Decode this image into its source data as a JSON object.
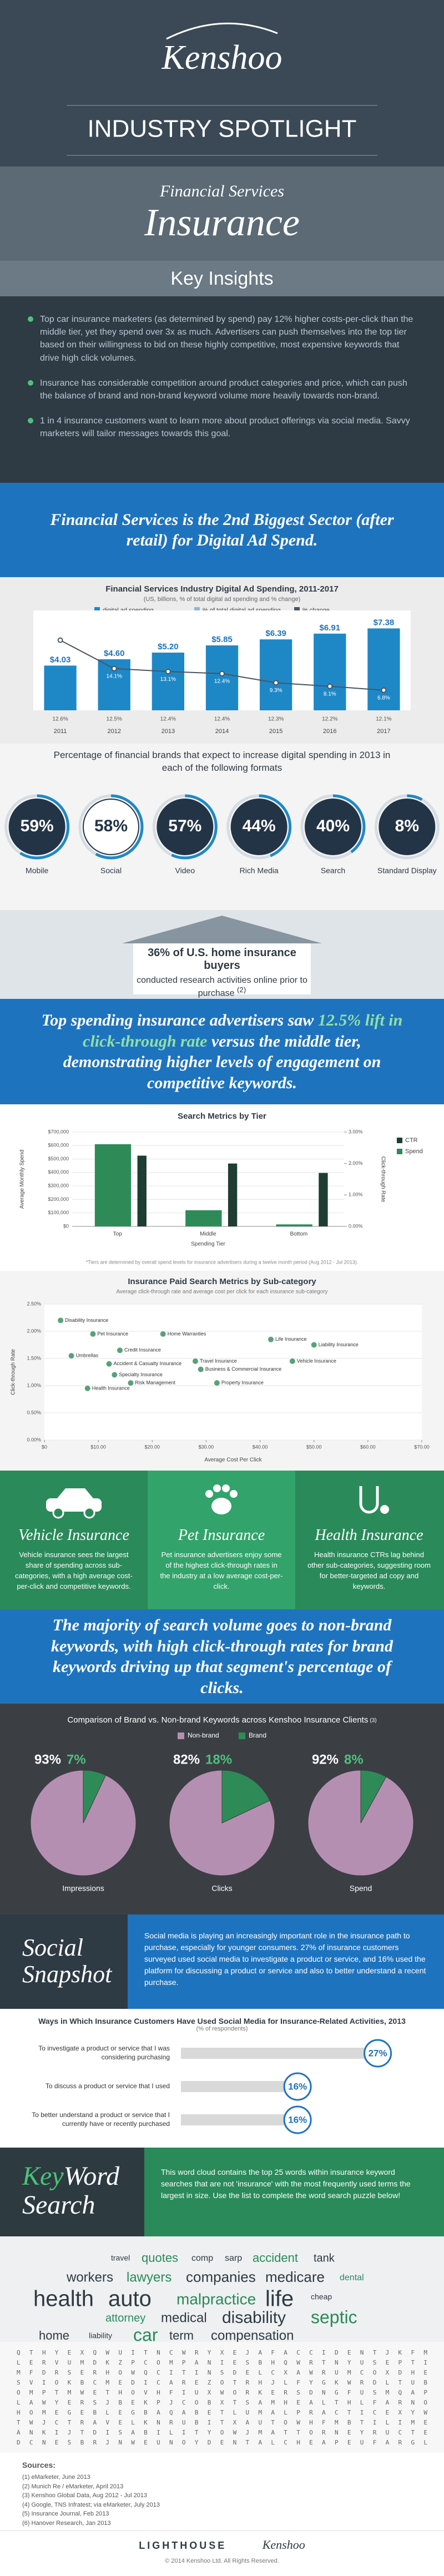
{
  "header": {
    "logo": "Kenshoo",
    "title": "INDUSTRY SPOTLIGHT"
  },
  "hero": {
    "kicker": "Financial Services",
    "title": "Insurance"
  },
  "insights": {
    "heading": "Key Insights",
    "bullets": [
      "Top car insurance marketers (as determined by spend) pay 12% higher costs-per-click than the middle tier, yet they spend over 3x as much. Advertisers can push themselves into the top tier based on their willingness to bid on these highly competitive, most expensive keywords that drive high click volumes.",
      "Insurance has considerable competition around product categories and price, which can push the balance of brand and non-brand keyword volume more heavily towards non-brand.",
      "1 in 4 insurance customers want to learn more about product offerings via social media. Savvy marketers will tailor messages towards this goal."
    ]
  },
  "band1": "Financial Services is the 2nd Biggest Sector (after retail) for Digital Ad Spend.",
  "home_buyers": {
    "stat": "36% of U.S. home insurance buyers",
    "text": "conducted research activities online prior to purchase",
    "note": "(2)"
  },
  "band2": {
    "before": "Top spending insurance advertisers saw ",
    "highlight": "12.5% lift in click-through rate",
    "after": " versus the middle tier, demonstrating higher levels of engagement on competitive keywords."
  },
  "panels": [
    {
      "title": "Vehicle Insurance",
      "text": "Vehicle insurance sees the largest share of spending across sub-categories, with a high average cost-per-click and competitive keywords."
    },
    {
      "title": "Pet Insurance",
      "text": "Pet insurance advertisers enjoy some of the highest click-through rates in the industry at a low average cost-per-click."
    },
    {
      "title": "Health Insurance",
      "text": "Health insurance CTRs lag behind other sub-categories, suggesting room for better-targeted ad copy and keywords."
    }
  ],
  "band3": "The majority of search volume goes to non-brand keywords, with high click-through rates for brand keywords driving up that segment's percentage of clicks.",
  "social": {
    "title": "Social Snapshot",
    "text": "Social media is playing an increasingly important role in the insurance path to purchase, especially for younger consumers. 27% of insurance customers surveyed used social media to investigate a product or service, and 16% used the platform for discussing a product or service and also to better understand a recent purchase."
  },
  "keyword": {
    "key": "Key",
    "word": "Word",
    "search": "Search",
    "text": "This word cloud contains the top 25 words within insurance keyword searches that are not 'insurance' with the most frequently used terms the largest in size. Use the list to complete the word search puzzle below!"
  },
  "word_cloud": [
    "travel",
    "quotes",
    "comp",
    "sarp",
    "accident",
    "tank",
    "workers",
    "lawyers",
    "companies",
    "medicare",
    "dental",
    "health",
    "auto",
    "malpractice",
    "life",
    "cheap",
    "attorney",
    "medical",
    "disability",
    "septic",
    "home",
    "liability",
    "car",
    "term",
    "compensation"
  ],
  "letter_grid": [
    "Q T H Y E X Q W U I T N C W R Y X E J A F A C C I D E N T J K F M",
    "L E R V U M D K Z P C O M P A N I E S B H Q W R T N Y U S E P T I",
    "M F D R S E R H O W Q C I T I N S D E L C X A W R U M C O X D H E",
    "S V I O K B C M E D I C A R E Z O T R H J L F Y G K W R D L T U B",
    "O M P T M W E T H O V H F I U X W O R K E R S D N G F U S M Q A P",
    "L A W Y E R S J B E K P J C O B X T S A M H E A L T H L F A R N O",
    "H O M E G E B L E G B A Q A B E T L U M A L P R A C T I C E X Y W",
    "T W J C T R A V E L K N R U B I T X A U T O W H F M B T I L I M E",
    "A N K I J T D I S A B I L I T Y O W J M A T T O R N E Y R U C T E",
    "D C N E S B R J N W E U N O Y D E N T A L C H E A P E U F A R G L"
  ],
  "sources": {
    "heading": "Sources:",
    "items": [
      "(1) eMarketer, June 2013",
      "(2) Munich Re / eMarketer, April 2013",
      "(3) Kenshoo Global Data, Aug 2012 - Jul 2013",
      "(4) Google, TNS Infratest; via eMarketer, July 2013",
      "(5) Insurance Journal, Feb 2013",
      "(6) Hanover Research, Jan 2013"
    ]
  },
  "footer": {
    "logos": [
      "LIGHTHOUSE",
      "Kenshoo"
    ],
    "copyright": "© 2014 Kenshoo Ltd. All Rights Reserved."
  },
  "chart_data": [
    {
      "type": "bar",
      "title": "Financial Services Industry Digital Ad Spending, 2011-2017",
      "subtitle": "(US, billions, % of total digital ad spending and % change)",
      "categories": [
        "2011",
        "2012",
        "2013",
        "2014",
        "2015",
        "2016",
        "2017"
      ],
      "ylim": [
        0,
        8
      ],
      "y2lim": [
        0,
        30
      ],
      "series": [
        {
          "name": "digital ad spending",
          "color": "#1e88c7",
          "values": [
            4.03,
            4.6,
            5.2,
            5.85,
            6.39,
            6.91,
            7.38
          ],
          "value_labels": [
            "$4.03",
            "$4.60",
            "$5.20",
            "$5.85",
            "$6.39",
            "$6.91",
            "$7.38"
          ]
        },
        {
          "name": "% of total digital ad spending",
          "color": "#8fb8d8",
          "values": [
            12.6,
            12.5,
            12.4,
            12.4,
            12.3,
            12.2,
            12.1
          ],
          "value_labels": [
            "12.6%",
            "12.5%",
            "12.4%",
            "12.4%",
            "12.3%",
            "12.2%",
            "12.1%"
          ]
        },
        {
          "name": "% change",
          "color": "#4a5560",
          "axis": "y2",
          "values": [
            23.7,
            14.1,
            13.1,
            12.4,
            9.3,
            8.1,
            6.8
          ],
          "value_labels": [
            "23.7%",
            "14.1%",
            "13.1%",
            "12.4%",
            "9.3%",
            "8.1%",
            "6.8%"
          ]
        }
      ]
    },
    {
      "type": "ring",
      "title": "Percentage of financial brands that expect to increase digital spending in 2013 in each of the following formats",
      "categories": [
        "Mobile",
        "Social",
        "Video",
        "Rich Media",
        "Search",
        "Standard Display"
      ],
      "values": [
        59,
        58,
        57,
        44,
        40,
        8
      ],
      "value_labels": [
        "59%",
        "58%",
        "57%",
        "44%",
        "40%",
        "8%"
      ],
      "ylim": [
        0,
        100
      ],
      "color": "#1e88c7"
    },
    {
      "type": "bar",
      "title": "Search Metrics by Tier",
      "categories": [
        "Top",
        "Middle",
        "Bottom"
      ],
      "x_label": "Spending Tier",
      "y_label": "Average Monthly Spend",
      "y2_label": "Click-through Rate",
      "ylim": [
        0,
        700000
      ],
      "yticks": [
        {
          "value": 0,
          "label": "$0"
        },
        {
          "value": 100000,
          "label": "$100,000"
        },
        {
          "value": 200000,
          "label": "$200,000"
        },
        {
          "value": 300000,
          "label": "$300,000"
        },
        {
          "value": 400000,
          "label": "$400,000"
        },
        {
          "value": 500000,
          "label": "$500,000"
        },
        {
          "value": 600000,
          "label": "$600,000"
        },
        {
          "value": 700000,
          "label": "$700,000"
        }
      ],
      "y2lim": [
        0,
        3
      ],
      "y2ticks": [
        {
          "value": 0,
          "label": "0.00%"
        },
        {
          "value": 1,
          "label": "1.00%"
        },
        {
          "value": 2,
          "label": "2.00%"
        },
        {
          "value": 3,
          "label": "3.00%"
        }
      ],
      "series": [
        {
          "name": "CTR",
          "color": "#1f3d33",
          "axis": "y2",
          "values": [
            2.25,
            2.0,
            1.7
          ]
        },
        {
          "name": "Spend",
          "color": "#2e8b57",
          "values": [
            610000,
            120000,
            15000
          ]
        }
      ],
      "note": "*Tiers are determined by overall spend levels for insurance advertisers during a twelve month period (Aug 2012 - Jul 2013)."
    },
    {
      "type": "scatter",
      "title": "Insurance Paid Search Metrics by Sub-category",
      "subtitle": "Average click-through rate and average cost per click for each insurance sub-category",
      "x_label": "Average Cost Per Click",
      "y_label": "Click-through Rate",
      "color": "#2e8b57",
      "xlim": [
        0,
        70
      ],
      "xticks": [
        {
          "value": 0,
          "label": "$0"
        },
        {
          "value": 10,
          "label": "$10.00"
        },
        {
          "value": 20,
          "label": "$20.00"
        },
        {
          "value": 30,
          "label": "$30.00"
        },
        {
          "value": 40,
          "label": "$40.00"
        },
        {
          "value": 50,
          "label": "$50.00"
        },
        {
          "value": 60,
          "label": "$60.00"
        },
        {
          "value": 70,
          "label": "$70.00"
        }
      ],
      "ylim": [
        0,
        2.5
      ],
      "yticks": [
        {
          "value": 0,
          "label": "0.00%"
        },
        {
          "value": 0.5,
          "label": "0.50%"
        },
        {
          "value": 1,
          "label": "1.00%"
        },
        {
          "value": 1.5,
          "label": "1.50%"
        },
        {
          "value": 2,
          "label": "2.00%"
        },
        {
          "value": 2.5,
          "label": "2.50%"
        }
      ],
      "labels": [
        "Disability Insurance",
        "Pet Insurance",
        "Home Warranties",
        "Credit Insurance",
        "Umbrellas",
        "Accident & Casualty Insurance",
        "Specialty Insurance",
        "Health Insurance",
        "Risk Management",
        "Travel Insurance",
        "Business & Commercial Insurance",
        "Life Insurance",
        "Liability Insurance",
        "Vehicle Insurance",
        "Property Insurance"
      ],
      "x": [
        3,
        9,
        22,
        14,
        5,
        12,
        13,
        8,
        16,
        28,
        29,
        42,
        50,
        46,
        32
      ],
      "y": [
        2.2,
        1.95,
        1.95,
        1.65,
        1.55,
        1.4,
        1.2,
        0.95,
        1.05,
        1.45,
        1.3,
        1.85,
        1.75,
        1.45,
        1.05
      ]
    },
    {
      "type": "pie",
      "title": "Comparison of Brand vs. Non-brand Keywords across Kenshoo Insurance Clients",
      "note": "(3)",
      "categories": [
        "Non-brand",
        "Brand"
      ],
      "colors": [
        "#b58fb2",
        "#2e8b57"
      ],
      "series": [
        {
          "name": "Impressions",
          "values": [
            93,
            7
          ],
          "value_labels": [
            "93%",
            "7%"
          ]
        },
        {
          "name": "Clicks",
          "values": [
            82,
            18
          ],
          "value_labels": [
            "82%",
            "18%"
          ]
        },
        {
          "name": "Spend",
          "values": [
            92,
            8
          ],
          "value_labels": [
            "92%",
            "8%"
          ]
        }
      ]
    },
    {
      "type": "bar",
      "orientation": "horizontal",
      "title": "Ways in Which Insurance Customers Have Used Social Media for Insurance-Related Activities, 2013",
      "subtitle": "(% of respondents)",
      "categories": [
        "To investigate a product or service that I was considering purchasing",
        "To discuss a product or service that I used",
        "To better understand a product or service that I currently have or recently purchased"
      ],
      "values": [
        27,
        16,
        16
      ],
      "value_labels": [
        "27%",
        "16%",
        "16%"
      ],
      "xlim": [
        0,
        30
      ],
      "color": "#d9d9d9"
    }
  ]
}
